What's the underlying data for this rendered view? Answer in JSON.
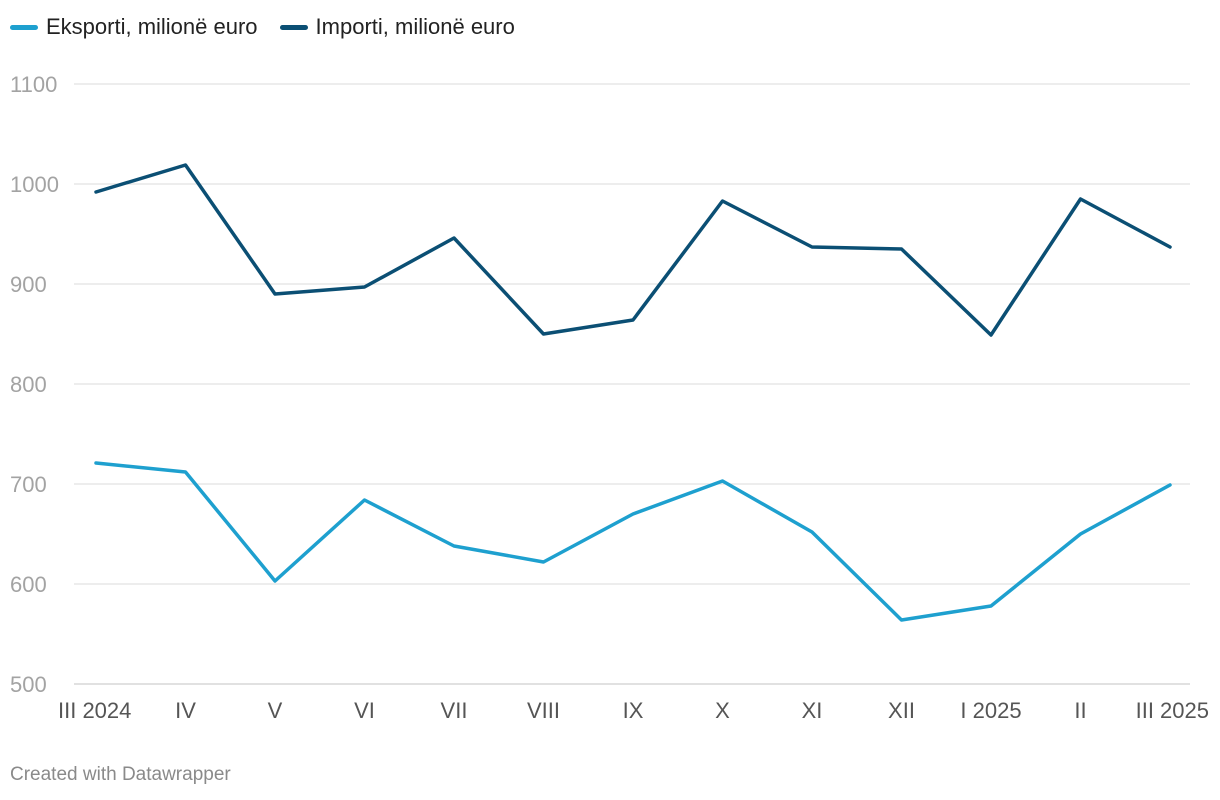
{
  "chart_data": {
    "type": "line",
    "categories": [
      "III 2024",
      "IV",
      "V",
      "VI",
      "VII",
      "VIII",
      "IX",
      "X",
      "XI",
      "XII",
      "I 2025",
      "II",
      "III 2025"
    ],
    "series": [
      {
        "name": "Eksporti, milionë euro",
        "color": "#1ea0cf",
        "values": [
          721,
          712,
          603,
          684,
          638,
          622,
          670,
          703,
          652,
          564,
          578,
          650,
          699
        ]
      },
      {
        "name": "Importi, milionë euro",
        "color": "#0b4f74",
        "values": [
          992,
          1019,
          890,
          897,
          946,
          850,
          864,
          983,
          937,
          935,
          849,
          985,
          937
        ]
      }
    ],
    "yticks": [
      500,
      600,
      700,
      800,
      900,
      1000,
      1100
    ],
    "ylim": [
      500,
      1100
    ],
    "grid": true,
    "legend_position": "top-left",
    "xlabel": "",
    "ylabel": ""
  },
  "footer": {
    "credit": "Created with Datawrapper"
  }
}
